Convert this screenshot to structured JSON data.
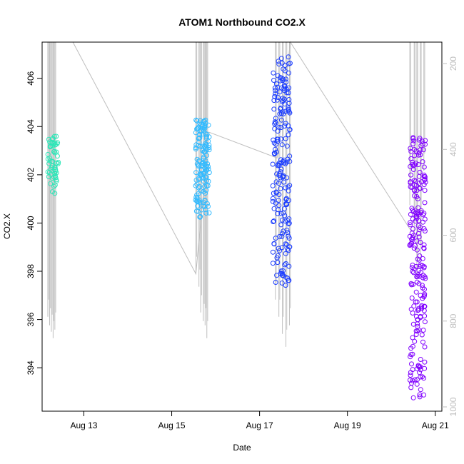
{
  "chart_data": {
    "type": "scatter",
    "title": "ATOM1 Northbound CO2.X",
    "xlabel": "Date",
    "ylabel": "CO2.X",
    "x_ticks": [
      "Aug 13",
      "Aug 15",
      "Aug 17",
      "Aug 19",
      "Aug 21"
    ],
    "x_tick_days": [
      13,
      15,
      17,
      19,
      21
    ],
    "xlim_days": [
      12.05,
      21.15
    ],
    "y_ticks": [
      394,
      396,
      398,
      400,
      402,
      404,
      406
    ],
    "ylim": [
      392.2,
      407.5
    ],
    "y2_ticks": [
      200,
      400,
      600,
      800,
      1000
    ],
    "y2lim": [
      1010,
      150
    ],
    "y2_reversed": true,
    "grid": false,
    "point_color_scale": [
      "#33ffcc",
      "#33ccff",
      "#1a3cff",
      "#8000ff"
    ],
    "clusters": [
      {
        "center_day": 12.3,
        "spread_days": 0.12,
        "y_min": 401.2,
        "y_max": 403.6,
        "color": "#2ee6b8",
        "count": 60,
        "profile_dates_days": [
          12.18,
          12.22,
          12.26,
          12.3,
          12.34
        ],
        "profile_bottom_depth": [
          790,
          810,
          825,
          840,
          820
        ]
      },
      {
        "center_day": 15.7,
        "spread_days": 0.16,
        "y_min": 400.2,
        "y_max": 404.3,
        "color": "#33bbff",
        "count": 140,
        "profile_dates_days": [
          15.55,
          15.62,
          15.66,
          15.72,
          15.76,
          15.8
        ],
        "profile_bottom_depth": [
          690,
          720,
          780,
          800,
          810,
          840
        ]
      },
      {
        "center_day": 17.5,
        "spread_days": 0.2,
        "y_min": 397.4,
        "y_max": 406.9,
        "color": "#1a3cff",
        "count": 200,
        "profile_dates_days": [
          17.36,
          17.44,
          17.52,
          17.6,
          17.68
        ],
        "profile_bottom_depth": [
          750,
          790,
          830,
          860,
          810
        ]
      },
      {
        "center_day": 20.6,
        "spread_days": 0.18,
        "y_min": 392.7,
        "y_max": 403.8,
        "color": "#8000ff",
        "count": 220,
        "profile_dates_days": [
          20.42,
          20.52,
          20.58,
          20.66,
          20.74
        ],
        "profile_bottom_depth": [
          530,
          610,
          700,
          660,
          450
        ]
      }
    ],
    "depth_track": [
      {
        "day": 12.75,
        "depth": 150
      },
      {
        "day": 15.55,
        "depth": 690
      },
      {
        "day": 15.85,
        "depth": 360
      },
      {
        "day": 17.4,
        "depth": 420
      },
      {
        "day": 17.7,
        "depth": 150
      },
      {
        "day": 20.45,
        "depth": 590
      }
    ]
  }
}
